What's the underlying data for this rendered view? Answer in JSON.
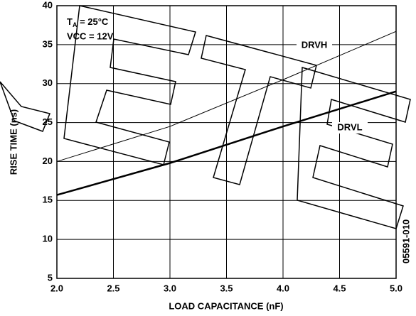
{
  "chart_data": {
    "type": "line",
    "xlabel": "LOAD CAPACITANCE (nF)",
    "ylabel": "RISE TIME (ns)",
    "x": [
      2.0,
      3.0,
      4.0,
      5.0
    ],
    "series": [
      {
        "name": "DRVH",
        "color": "#000000",
        "width": 1,
        "values": [
          20,
          24.5,
          30.5,
          36.7
        ]
      },
      {
        "name": "DRVL",
        "color": "#000000",
        "width": 2.5,
        "values": [
          15.7,
          19.8,
          24.5,
          29
        ]
      }
    ],
    "xlim": [
      2.0,
      5.0
    ],
    "xticks": [
      {
        "value": 2,
        "label": "2.0"
      },
      {
        "value": 2.5,
        "label": "2.5"
      },
      {
        "value": 3,
        "label": "3.0"
      },
      {
        "value": 3.5,
        "label": "3.5"
      },
      {
        "value": 4,
        "label": "4.0"
      },
      {
        "value": 4.5,
        "label": "4.5"
      },
      {
        "value": 5,
        "label": "5.0"
      }
    ],
    "ylim": [
      5,
      40
    ],
    "yticks": [
      5,
      10,
      15,
      20,
      25,
      30,
      35,
      40
    ],
    "grid": true,
    "annotations": {
      "ta": {
        "main": "T",
        "sub": "A",
        "rest": " = 25°C"
      },
      "vcc": "VCC = 12V",
      "code": "05591-010"
    }
  }
}
